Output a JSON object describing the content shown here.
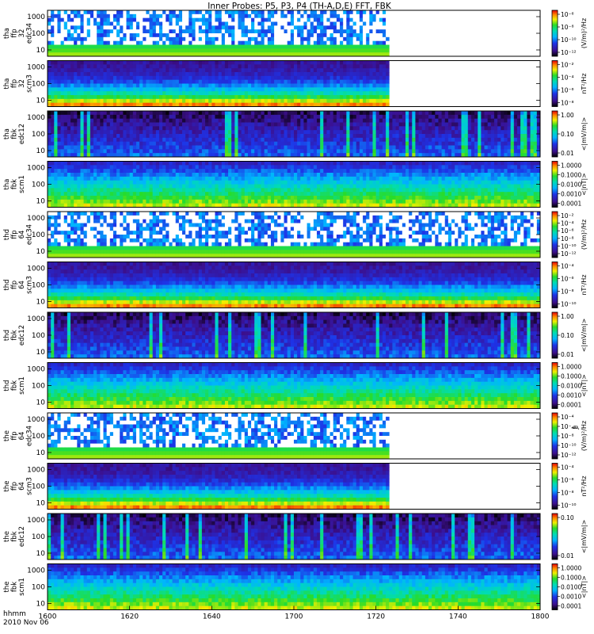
{
  "chart_data": {
    "type": "heatmap",
    "title": "Inner Probes: P5, P3, P4 (TH-A,D,E) FFT, FBK",
    "time_label": "hhmm",
    "date_label": "2010 Nov 06",
    "x_range": [
      "16:00",
      "18:00"
    ],
    "x_ticks": [
      "1600",
      "1620",
      "1640",
      "1700",
      "1720",
      "1740",
      "1800"
    ],
    "panels": [
      {
        "probe": "tha",
        "ylabel": [
          "tha",
          "ffp",
          "32",
          "edc34"
        ],
        "kind": "eff",
        "yticks": [
          "1000",
          "100",
          "10"
        ],
        "cbar_label": "(V/m)²/Hz",
        "cbar_ticks": [
          "10⁻⁶",
          "10⁻⁸",
          "10⁻¹⁰",
          "10⁻¹²"
        ],
        "data_end": "17:23"
      },
      {
        "probe": "tha",
        "ylabel": [
          "tha",
          "ffp",
          "32",
          "scm3"
        ],
        "kind": "scm",
        "yticks": [
          "1000",
          "100",
          "10"
        ],
        "cbar_label": "nT²/Hz",
        "cbar_ticks": [
          "10⁻²",
          "10⁻⁴",
          "10⁻⁶",
          "10⁻⁸"
        ],
        "data_end": "17:23"
      },
      {
        "probe": "tha",
        "ylabel": [
          "tha",
          "fbk",
          "edc12"
        ],
        "kind": "fbk_e",
        "yticks": [
          "1000",
          "100",
          "10"
        ],
        "cbar_label": "<|mV/m|>",
        "cbar_ticks": [
          "1.00",
          "0.10",
          "0.01"
        ],
        "data_end": "18:00"
      },
      {
        "probe": "tha",
        "ylabel": [
          "tha",
          "fbk",
          "scm1"
        ],
        "kind": "fbk_b",
        "yticks": [
          "1000",
          "100",
          "10"
        ],
        "cbar_label": "<|nT|>",
        "cbar_ticks": [
          "1.0000",
          "0.1000",
          "0.0100",
          "0.0010",
          "0.0001"
        ],
        "data_end": "18:00"
      },
      {
        "probe": "thd",
        "ylabel": [
          "thd",
          "ffp",
          "64",
          "edc34"
        ],
        "kind": "eff",
        "yticks": [
          "1000",
          "100",
          "10"
        ],
        "cbar_label": "(V/m)²/Hz",
        "cbar_ticks": [
          "10⁻²",
          "10⁻⁴",
          "10⁻⁶",
          "10⁻⁸",
          "10⁻¹⁰",
          "10⁻¹²"
        ],
        "data_end": "18:00"
      },
      {
        "probe": "thd",
        "ylabel": [
          "thd",
          "ffp",
          "64",
          "scm3"
        ],
        "kind": "scm",
        "yticks": [
          "1000",
          "100",
          "10"
        ],
        "cbar_label": "nT²/Hz",
        "cbar_ticks": [
          "10⁻⁴",
          "10⁻⁶",
          "10⁻⁸",
          "10⁻¹⁰"
        ],
        "data_end": "18:00"
      },
      {
        "probe": "thd",
        "ylabel": [
          "thd",
          "fbk",
          "edc12"
        ],
        "kind": "fbk_e",
        "yticks": [
          "1000",
          "100",
          "10"
        ],
        "cbar_label": "<|mV/m|>",
        "cbar_ticks": [
          "1.00",
          "0.10",
          "0.01"
        ],
        "data_end": "18:00"
      },
      {
        "probe": "thd",
        "ylabel": [
          "thd",
          "fbk",
          "scm1"
        ],
        "kind": "fbk_b",
        "yticks": [
          "1000",
          "100",
          "10"
        ],
        "cbar_label": "<|nT|>",
        "cbar_ticks": [
          "1.0000",
          "0.1000",
          "0.0100",
          "0.0010",
          "0.0001"
        ],
        "data_end": "18:00"
      },
      {
        "probe": "the",
        "ylabel": [
          "the",
          "ffp",
          "64",
          "edc34"
        ],
        "kind": "eff",
        "yticks": [
          "1000",
          "100",
          "10"
        ],
        "cbar_label": "(V/m)²/Hz",
        "cbar_ticks": [
          "10⁻⁴",
          "10⁻ⶺ",
          "10⁻⁸",
          "10⁻¹⁰",
          "10⁻¹²"
        ],
        "data_end": "17:23"
      },
      {
        "probe": "the",
        "ylabel": [
          "the",
          "ffp",
          "64",
          "scm3"
        ],
        "kind": "scm",
        "yticks": [
          "1000",
          "100",
          "10"
        ],
        "cbar_label": "nT²/Hz",
        "cbar_ticks": [
          "10⁻⁴",
          "10⁻⁶",
          "10⁻⁸",
          "10⁻¹⁰"
        ],
        "data_end": "17:23"
      },
      {
        "probe": "the",
        "ylabel": [
          "the",
          "fbk",
          "edc12"
        ],
        "kind": "fbk_e",
        "yticks": [
          "1000",
          "100",
          "10"
        ],
        "cbar_label": "<|mV/m|>",
        "cbar_ticks": [
          "0.10",
          "0.01"
        ],
        "data_end": "18:00"
      },
      {
        "probe": "the",
        "ylabel": [
          "the",
          "fbk",
          "scm1"
        ],
        "kind": "fbk_b",
        "yticks": [
          "1000",
          "100",
          "10"
        ],
        "cbar_label": "<|nT|>",
        "cbar_ticks": [
          "1.0000",
          "0.1000",
          "0.0100",
          "0.0010",
          "0.0001"
        ],
        "data_end": "18:00"
      }
    ]
  }
}
